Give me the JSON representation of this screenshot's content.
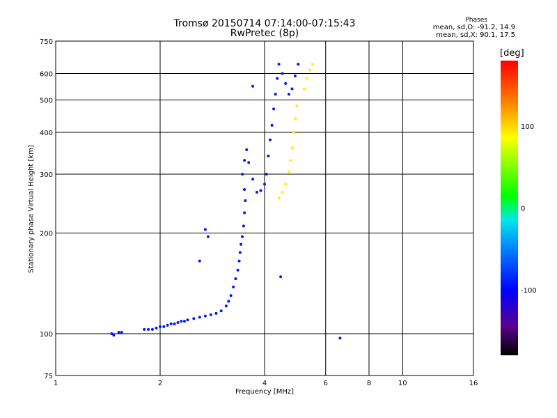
{
  "chart_data": {
    "type": "scatter",
    "title": "Tromsø 20150714 07:14:00-07:15:43",
    "subtitle": "RwPretec (8p)",
    "xlabel": "Frequency [MHz]",
    "ylabel": "Stationary phase Virtual Height [km]",
    "x_scale": "log",
    "y_scale": "log",
    "xlim": [
      1,
      16
    ],
    "ylim": [
      75,
      750
    ],
    "x_ticks": [
      "1",
      "2",
      "4",
      "6",
      "8",
      "10",
      "16"
    ],
    "x_tick_values": [
      1,
      2,
      4,
      6,
      8,
      10,
      16
    ],
    "y_ticks": [
      "75",
      "100",
      "200",
      "300",
      "400",
      "500",
      "600",
      "750"
    ],
    "y_tick_values": [
      75,
      100,
      200,
      300,
      400,
      500,
      600,
      750
    ],
    "grid": true,
    "phases_legend": {
      "title": "Phases",
      "o_mode": "mean, sd,O: -91.2, 14.9",
      "x_mode": "mean, sd,X:  90.1, 17.5"
    },
    "colorbar": {
      "unit": "[deg]",
      "range": [
        -180,
        180
      ],
      "tick_labels": [
        "100",
        "0",
        "-100"
      ],
      "tick_values": [
        100,
        0,
        -100
      ]
    },
    "o_trace": {
      "phase_mean": -91.2,
      "phase_sd": 14.9,
      "points": [
        [
          1.45,
          100
        ],
        [
          1.47,
          99
        ],
        [
          1.52,
          101
        ],
        [
          1.55,
          101
        ],
        [
          1.8,
          103
        ],
        [
          1.85,
          103
        ],
        [
          1.9,
          103
        ],
        [
          1.95,
          104
        ],
        [
          2.0,
          105
        ],
        [
          2.05,
          105
        ],
        [
          2.1,
          106
        ],
        [
          2.15,
          107
        ],
        [
          2.2,
          107
        ],
        [
          2.25,
          108
        ],
        [
          2.3,
          109
        ],
        [
          2.35,
          109
        ],
        [
          2.4,
          110
        ],
        [
          2.5,
          111
        ],
        [
          2.6,
          112
        ],
        [
          2.7,
          113
        ],
        [
          2.8,
          114
        ],
        [
          2.9,
          115
        ],
        [
          3.0,
          117
        ],
        [
          3.1,
          121
        ],
        [
          3.15,
          125
        ],
        [
          3.2,
          130
        ],
        [
          3.25,
          138
        ],
        [
          3.3,
          146
        ],
        [
          3.35,
          155
        ],
        [
          3.38,
          165
        ],
        [
          3.4,
          175
        ],
        [
          3.42,
          185
        ],
        [
          3.45,
          195
        ],
        [
          3.48,
          210
        ],
        [
          3.5,
          230
        ],
        [
          3.52,
          250
        ],
        [
          3.5,
          270
        ],
        [
          3.45,
          300
        ],
        [
          3.5,
          330
        ],
        [
          3.55,
          355
        ],
        [
          3.6,
          325
        ],
        [
          3.7,
          290
        ],
        [
          3.8,
          265
        ],
        [
          3.9,
          268
        ],
        [
          4.0,
          280
        ],
        [
          4.05,
          300
        ],
        [
          4.1,
          340
        ],
        [
          4.15,
          380
        ],
        [
          4.2,
          420
        ],
        [
          4.25,
          470
        ],
        [
          4.3,
          520
        ],
        [
          4.35,
          580
        ],
        [
          4.4,
          640
        ],
        [
          4.5,
          600
        ],
        [
          4.6,
          560
        ],
        [
          4.7,
          520
        ],
        [
          4.8,
          540
        ],
        [
          4.9,
          590
        ],
        [
          5.0,
          640
        ],
        [
          2.7,
          205
        ],
        [
          2.75,
          195
        ],
        [
          2.6,
          165
        ],
        [
          3.7,
          550
        ],
        [
          4.45,
          148
        ],
        [
          6.6,
          97
        ]
      ]
    },
    "x_trace": {
      "phase_mean": 90.1,
      "phase_sd": 17.5,
      "points": [
        [
          4.4,
          255
        ],
        [
          4.5,
          265
        ],
        [
          4.6,
          280
        ],
        [
          4.7,
          305
        ],
        [
          4.75,
          330
        ],
        [
          4.8,
          360
        ],
        [
          4.85,
          400
        ],
        [
          4.9,
          440
        ],
        [
          4.95,
          480
        ],
        [
          5.2,
          540
        ],
        [
          5.3,
          580
        ],
        [
          5.4,
          615
        ],
        [
          5.5,
          640
        ]
      ]
    }
  }
}
